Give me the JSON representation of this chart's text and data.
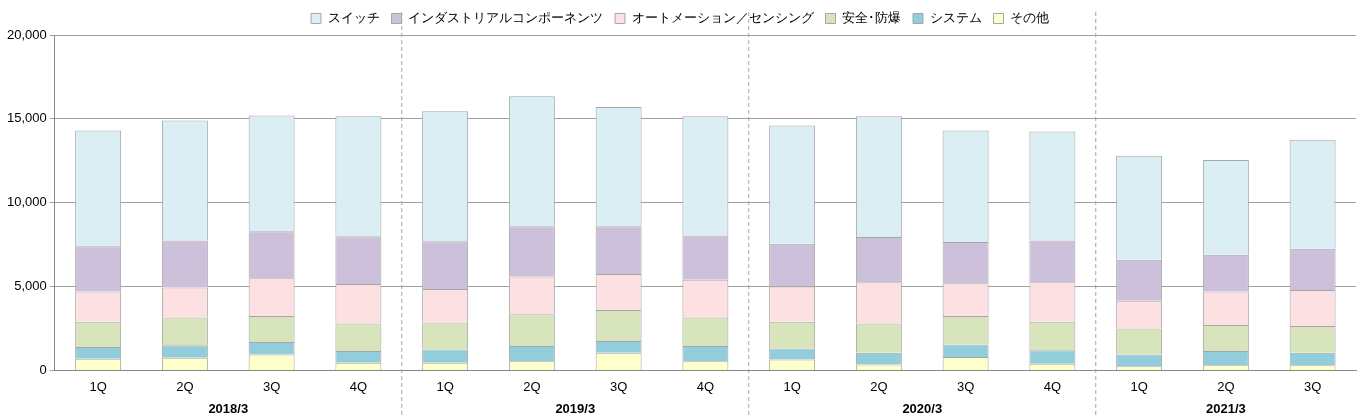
{
  "chart_data": {
    "type": "bar",
    "stacked": true,
    "categories": [
      "1Q",
      "2Q",
      "3Q",
      "4Q",
      "1Q",
      "2Q",
      "3Q",
      "4Q",
      "1Q",
      "2Q",
      "3Q",
      "4Q",
      "1Q",
      "2Q",
      "3Q"
    ],
    "series": [
      {
        "name": "その他",
        "color": "#ffffcc",
        "values": [
          700,
          750,
          950,
          450,
          450,
          550,
          1050,
          550,
          650,
          350,
          800,
          400,
          250,
          300,
          300
        ]
      },
      {
        "name": "システム",
        "color": "#92cddc",
        "values": [
          700,
          750,
          750,
          700,
          800,
          900,
          700,
          900,
          650,
          700,
          750,
          800,
          700,
          850,
          750
        ]
      },
      {
        "name": "安全･防爆",
        "color": "#d8e4bc",
        "values": [
          1500,
          1650,
          1550,
          1650,
          1600,
          1900,
          1850,
          1700,
          1600,
          1750,
          1700,
          1700,
          1550,
          1550,
          1600
        ]
      },
      {
        "name": "オートメーション／センシング",
        "color": "#fde0e2",
        "values": [
          1800,
          1800,
          2250,
          2350,
          2000,
          2250,
          2150,
          2250,
          2100,
          2450,
          1950,
          2350,
          1650,
          2000,
          2150
        ]
      },
      {
        "name": "インダストリアルコンポーネンツ",
        "color": "#ccc0da",
        "values": [
          2700,
          2800,
          2800,
          2850,
          2850,
          3000,
          2850,
          2650,
          2550,
          2700,
          2450,
          2500,
          2450,
          2200,
          2450
        ]
      },
      {
        "name": "スイッチ",
        "color": "#daeef3",
        "values": [
          6900,
          7150,
          6900,
          7150,
          7750,
          7750,
          7100,
          7100,
          7050,
          7200,
          6650,
          6500,
          6200,
          5650,
          6500
        ]
      }
    ],
    "ylim": [
      0,
      20000
    ],
    "yticks": [
      0,
      {
        "value": 5000,
        "label": "5,000"
      },
      {
        "value": 10000,
        "label": "10,000"
      },
      {
        "value": 15000,
        "label": "15,000"
      },
      {
        "value": 20000,
        "label": "20,000"
      }
    ],
    "grid": "y",
    "legend": "top",
    "annotations": [
      "2018/3",
      "2019/3",
      "2020/3",
      "2021/3"
    ]
  }
}
